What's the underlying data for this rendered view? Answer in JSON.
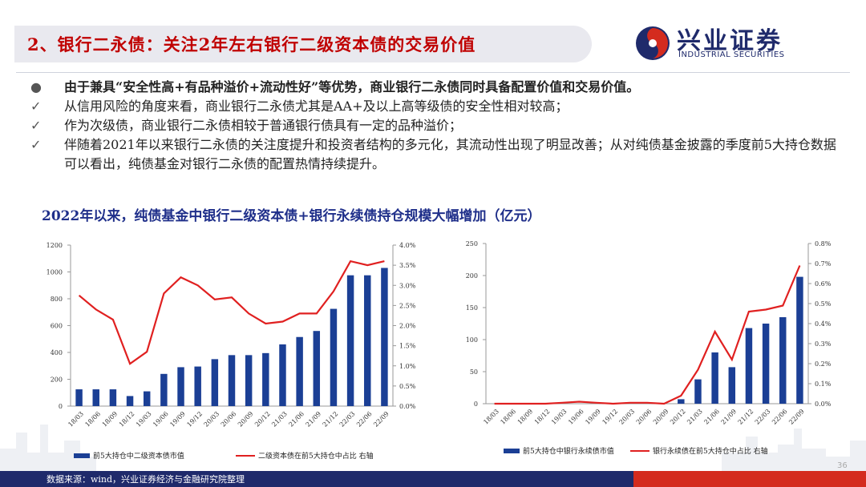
{
  "header": {
    "title": "2、银行二永债：关注2年左右银行二级资本债的交易价值",
    "logo_cn": "兴业证券",
    "logo_en": "INDUSTRIAL SECURITIES"
  },
  "bullets": [
    {
      "mark": "●",
      "text": "由于兼具“安全性高+有品种溢价+流动性好”等优势，商业银行二永债同时具备配置价值和交易价值。",
      "bold": true
    },
    {
      "mark": "✓",
      "text": "从信用风险的角度来看，商业银行二永债尤其是AA+及以上高等级债的安全性相对较高；",
      "bold": false
    },
    {
      "mark": "✓",
      "text": "作为次级债，商业银行二永债相较于普通银行债具有一定的品种溢价；",
      "bold": false
    },
    {
      "mark": "✓",
      "text": "伴随着2021年以来银行二永债的关注度提升和投资者结构的多元化，其流动性出现了明显改善；从对纯债基金披露的季度前5大持仓数据可以看出，纯债基金对银行二永债的配置热情持续提升。",
      "bold": false
    }
  ],
  "chart_caption": "2022年以来，纯债基金中银行二级资本债+银行永续债持仓规模大幅增加（亿元）",
  "footer": {
    "source": "数据来源：wind，兴业证券经济与金融研究院整理",
    "page": "36"
  },
  "colors": {
    "bar": "#1b3f95",
    "line": "#e02020",
    "title": "#c00000",
    "navy": "#1f2a6b"
  },
  "chart_data": [
    {
      "type": "bar",
      "categories": [
        "18/03",
        "18/06",
        "18/09",
        "18/12",
        "19/03",
        "19/06",
        "19/09",
        "19/12",
        "20/03",
        "20/06",
        "20/09",
        "20/12",
        "21/03",
        "21/06",
        "21/09",
        "21/12",
        "22/03",
        "22/06",
        "22/09"
      ],
      "series": [
        {
          "name": "前5大持仓中二级资本债市值",
          "type": "bar",
          "axis": "left",
          "values": [
            125,
            125,
            125,
            75,
            110,
            240,
            290,
            295,
            350,
            380,
            380,
            395,
            460,
            515,
            560,
            725,
            975,
            975,
            1030
          ]
        },
        {
          "name": "二级资本债在前5大持仓中占比 右轴",
          "type": "line",
          "axis": "right",
          "values": [
            2.75,
            2.4,
            2.15,
            1.05,
            1.35,
            2.8,
            3.2,
            3.0,
            2.65,
            2.7,
            2.3,
            2.05,
            2.1,
            2.3,
            2.3,
            2.85,
            3.6,
            3.5,
            3.6
          ]
        }
      ],
      "ylim_left": [
        0,
        1200
      ],
      "yticks_left": [
        "0",
        "200",
        "400",
        "600",
        "800",
        "1000",
        "1200"
      ],
      "ylim_right": [
        0,
        4.0
      ],
      "yticks_right": [
        "0.0%",
        "0.5%",
        "1.0%",
        "1.5%",
        "2.0%",
        "2.5%",
        "3.0%",
        "3.5%",
        "4.0%"
      ],
      "legend_position": "bottom"
    },
    {
      "type": "bar",
      "categories": [
        "18/03",
        "18/06",
        "18/09",
        "18/12",
        "19/03",
        "19/06",
        "19/09",
        "19/12",
        "20/03",
        "20/06",
        "20/09",
        "20/12",
        "21/03",
        "21/06",
        "21/09",
        "21/12",
        "22/03",
        "22/06",
        "22/09"
      ],
      "series": [
        {
          "name": "前5大持仓中银行永续债市值",
          "type": "bar",
          "axis": "left",
          "values": [
            0,
            0,
            0,
            0,
            0,
            0,
            0,
            0,
            0,
            0,
            0,
            7,
            38,
            80,
            57,
            118,
            125,
            135,
            198
          ]
        },
        {
          "name": "银行永续债在前5大持仓中占比 右轴",
          "type": "line",
          "axis": "right",
          "values": [
            0,
            0,
            0,
            0,
            0.005,
            0.01,
            0.005,
            0,
            0.005,
            0.005,
            0,
            0.04,
            0.17,
            0.36,
            0.22,
            0.46,
            0.47,
            0.49,
            0.69
          ]
        }
      ],
      "ylim_left": [
        0,
        250
      ],
      "yticks_left": [
        "0",
        "50",
        "100",
        "150",
        "200",
        "250"
      ],
      "ylim_right": [
        0,
        0.8
      ],
      "yticks_right": [
        "0.0%",
        "0.1%",
        "0.2%",
        "0.3%",
        "0.4%",
        "0.5%",
        "0.6%",
        "0.7%",
        "0.8%"
      ],
      "legend_position": "bottom"
    }
  ]
}
